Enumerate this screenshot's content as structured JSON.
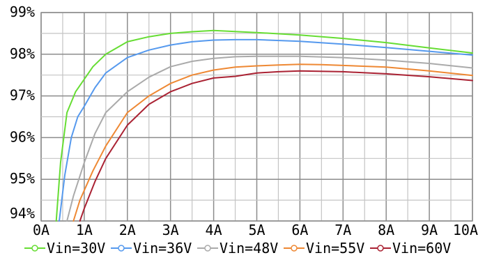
{
  "chart_data": {
    "type": "line",
    "xlabel": "",
    "ylabel": "",
    "xlim": [
      0,
      10
    ],
    "ylim": [
      94,
      99
    ],
    "grid": true,
    "legend_position": "bottom",
    "x_ticks": [
      "0A",
      "1A",
      "2A",
      "3A",
      "4A",
      "5A",
      "6A",
      "7A",
      "8A",
      "9A",
      "10A"
    ],
    "y_ticks": [
      "94%",
      "95%",
      "96%",
      "97%",
      "98%",
      "99%"
    ],
    "series": [
      {
        "name": "Vin=30V",
        "color": "#66dd33",
        "x": [
          0.35,
          0.45,
          0.6,
          0.8,
          1.0,
          1.2,
          1.5,
          2.0,
          2.5,
          3.0,
          3.5,
          4.0,
          5.0,
          6.0,
          7.0,
          8.0,
          9.0,
          10.0
        ],
        "y": [
          94.0,
          95.4,
          96.6,
          97.1,
          97.4,
          97.7,
          98.0,
          98.3,
          98.42,
          98.5,
          98.54,
          98.57,
          98.52,
          98.46,
          98.38,
          98.28,
          98.15,
          98.03
        ]
      },
      {
        "name": "Vin=36V",
        "color": "#5599ee",
        "x": [
          0.42,
          0.55,
          0.7,
          0.85,
          1.0,
          1.25,
          1.5,
          2.0,
          2.5,
          3.0,
          3.5,
          4.0,
          4.5,
          5.0,
          6.0,
          7.0,
          8.0,
          9.0,
          10.0
        ],
        "y": [
          94.0,
          95.1,
          96.0,
          96.5,
          96.75,
          97.2,
          97.55,
          97.92,
          98.1,
          98.22,
          98.3,
          98.34,
          98.35,
          98.35,
          98.31,
          98.24,
          98.16,
          98.07,
          97.98
        ]
      },
      {
        "name": "Vin=48V",
        "color": "#aaaaaa",
        "x": [
          0.6,
          0.75,
          1.0,
          1.25,
          1.5,
          2.0,
          2.5,
          3.0,
          3.5,
          4.0,
          4.5,
          5.0,
          6.0,
          7.0,
          8.0,
          9.0,
          10.0
        ],
        "y": [
          94.0,
          94.6,
          95.4,
          96.1,
          96.6,
          97.1,
          97.45,
          97.7,
          97.83,
          97.9,
          97.94,
          97.95,
          97.95,
          97.92,
          97.86,
          97.78,
          97.67
        ]
      },
      {
        "name": "Vin=55V",
        "color": "#ee8833",
        "x": [
          0.75,
          0.9,
          1.2,
          1.5,
          2.0,
          2.5,
          3.0,
          3.5,
          4.0,
          4.5,
          5.0,
          5.5,
          6.0,
          6.5,
          7.0,
          8.0,
          9.0,
          10.0
        ],
        "y": [
          94.0,
          94.5,
          95.2,
          95.8,
          96.6,
          97.0,
          97.3,
          97.5,
          97.62,
          97.69,
          97.72,
          97.74,
          97.76,
          97.75,
          97.73,
          97.69,
          97.6,
          97.49
        ]
      },
      {
        "name": "Vin=60V",
        "color": "#aa2233",
        "x": [
          0.9,
          1.0,
          1.25,
          1.5,
          2.0,
          2.5,
          3.0,
          3.5,
          4.0,
          4.5,
          5.0,
          5.5,
          6.0,
          7.0,
          8.0,
          9.0,
          10.0
        ],
        "y": [
          94.0,
          94.3,
          94.95,
          95.5,
          96.3,
          96.8,
          97.1,
          97.3,
          97.43,
          97.47,
          97.55,
          97.58,
          97.6,
          97.58,
          97.53,
          97.46,
          97.37
        ]
      }
    ]
  }
}
